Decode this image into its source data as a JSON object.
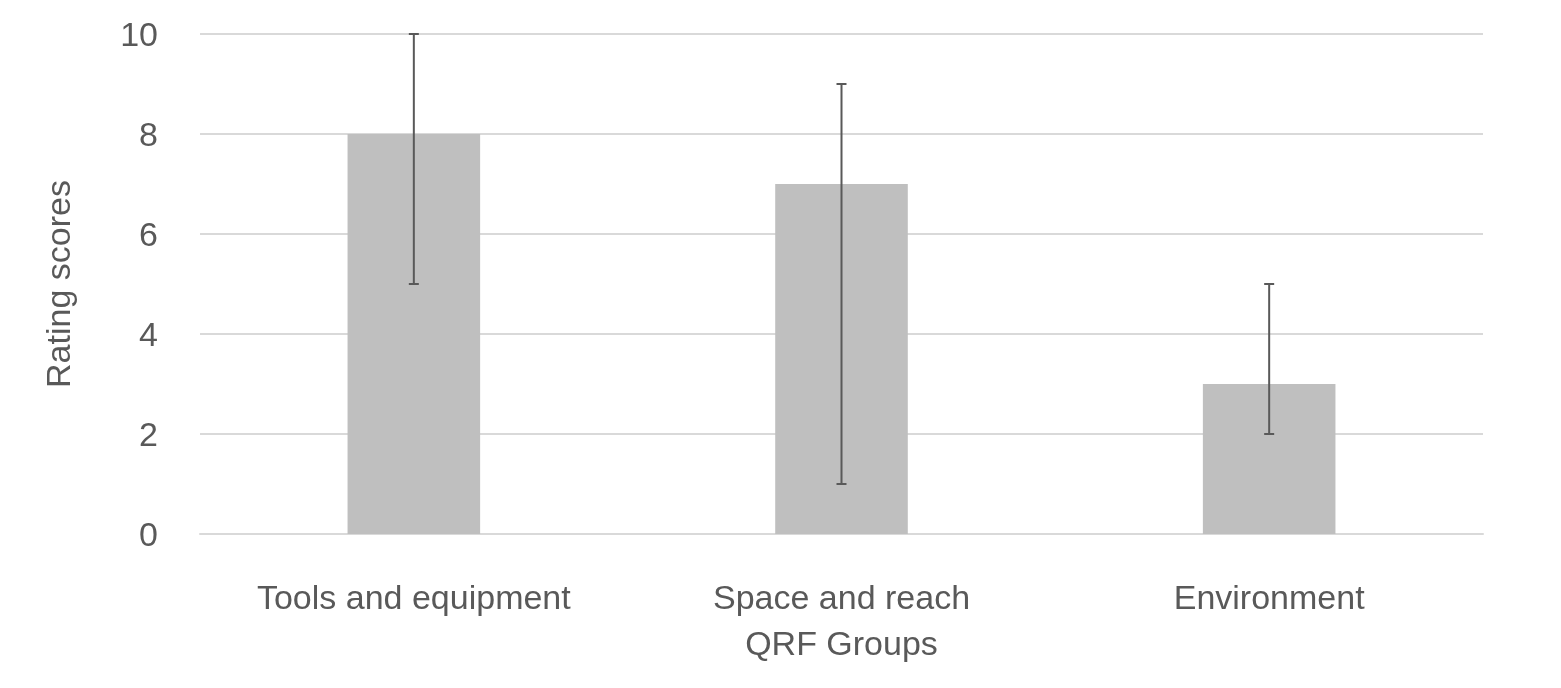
{
  "chart_data": {
    "type": "bar",
    "xlabel": "QRF Groups",
    "ylabel": "Rating scores",
    "categories": [
      "Tools and equipment",
      "Space and reach",
      "Environment"
    ],
    "values": [
      8,
      7,
      3
    ],
    "color": "#bfbfbf",
    "errors": [
      [
        5,
        10
      ],
      [
        1,
        9
      ],
      [
        2,
        5
      ]
    ],
    "ylim": [
      0,
      10
    ],
    "yticks": [
      0,
      2,
      4,
      6,
      8,
      10
    ],
    "grid": "y"
  }
}
